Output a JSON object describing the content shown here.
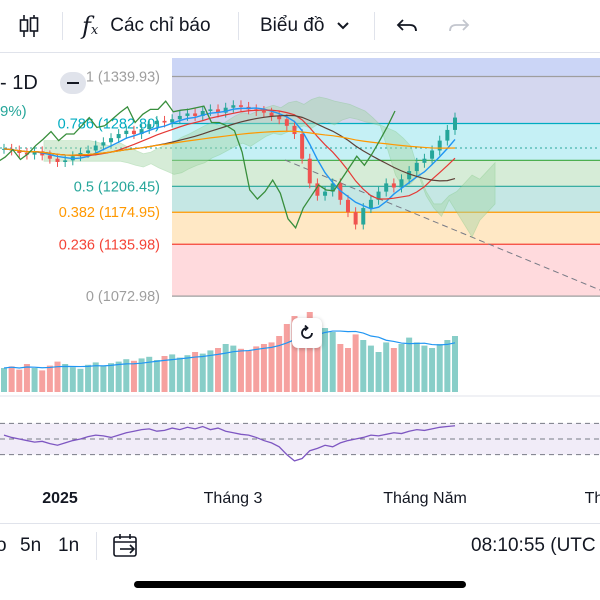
{
  "toolbar": {
    "indicators_label": "Các chỉ báo",
    "chart_type_label": "Biểu đồ"
  },
  "legend": {
    "interval": "1D",
    "change_pct": "9%)"
  },
  "bottombar": {
    "range_5d": "5n",
    "range_1y": "1n",
    "range_partial": "o",
    "clock": "08:10:55 (UTC"
  },
  "colors": {
    "up": "#26a69a",
    "down": "#ef5350",
    "ichimoku_cloud": "#a5d6a7",
    "rsi_line": "#7e57c2"
  },
  "chart_data": {
    "type": "candlestick",
    "time_axis_labels": [
      "2025",
      "Tháng 3",
      "Tháng Năm",
      "Th"
    ],
    "fibonacci_levels": [
      {
        "ratio": "1",
        "price": "1339.93",
        "label": "1 (1339.93)",
        "color": "#9e9e9e"
      },
      {
        "ratio": "0.786",
        "price": "1282.80",
        "label": "0.786 (1282.80)",
        "color": "#00acc1"
      },
      {
        "ratio": "0.618",
        "price": "",
        "label": "",
        "color": "#4caf50"
      },
      {
        "ratio": "0.5",
        "price": "1206.45",
        "label": "0.5 (1206.45)",
        "color": "#26a69a"
      },
      {
        "ratio": "0.382",
        "price": "1174.95",
        "label": "0.382 (1174.95)",
        "color": "#ff9800"
      },
      {
        "ratio": "0.236",
        "price": "1135.98",
        "label": "0.236 (1135.98)",
        "color": "#f44336"
      },
      {
        "ratio": "0",
        "price": "1072.98",
        "label": "0 (1072.98)",
        "color": "#9e9e9e"
      }
    ],
    "price_ylim": [
      1050,
      1360
    ],
    "candles_close": [
      1252,
      1250,
      1247,
      1245,
      1249,
      1244,
      1240,
      1236,
      1238,
      1243,
      1247,
      1250,
      1256,
      1260,
      1265,
      1270,
      1274,
      1270,
      1276,
      1282,
      1286,
      1284,
      1288,
      1292,
      1295,
      1292,
      1298,
      1300,
      1296,
      1302,
      1305,
      1303,
      1300,
      1298,
      1296,
      1292,
      1288,
      1280,
      1270,
      1240,
      1210,
      1195,
      1200,
      1210,
      1190,
      1175,
      1160,
      1180,
      1190,
      1200,
      1210,
      1205,
      1215,
      1225,
      1235,
      1240,
      1250,
      1262,
      1275,
      1290
    ],
    "volume": [
      30,
      32,
      28,
      35,
      30,
      27,
      33,
      38,
      35,
      31,
      29,
      34,
      37,
      33,
      36,
      38,
      41,
      39,
      42,
      44,
      40,
      45,
      47,
      43,
      46,
      50,
      48,
      52,
      55,
      60,
      58,
      54,
      52,
      57,
      60,
      62,
      70,
      85,
      95,
      65,
      100,
      70,
      80,
      75,
      60,
      55,
      72,
      65,
      58,
      50,
      62,
      55,
      60,
      68,
      62,
      58,
      55,
      60,
      65,
      70
    ],
    "rsi": [
      55,
      52,
      50,
      48,
      46,
      47,
      44,
      42,
      45,
      48,
      50,
      53,
      55,
      54,
      52,
      55,
      58,
      60,
      62,
      63,
      60,
      61,
      64,
      62,
      65,
      63,
      66,
      62,
      64,
      60,
      58,
      56,
      55,
      52,
      48,
      45,
      40,
      30,
      22,
      25,
      35,
      38,
      42,
      40,
      45,
      48,
      50,
      52,
      55,
      54,
      56,
      58,
      57,
      60,
      62,
      61,
      63,
      65,
      66,
      67
    ],
    "rsi_levels": [
      70,
      50,
      30
    ]
  }
}
